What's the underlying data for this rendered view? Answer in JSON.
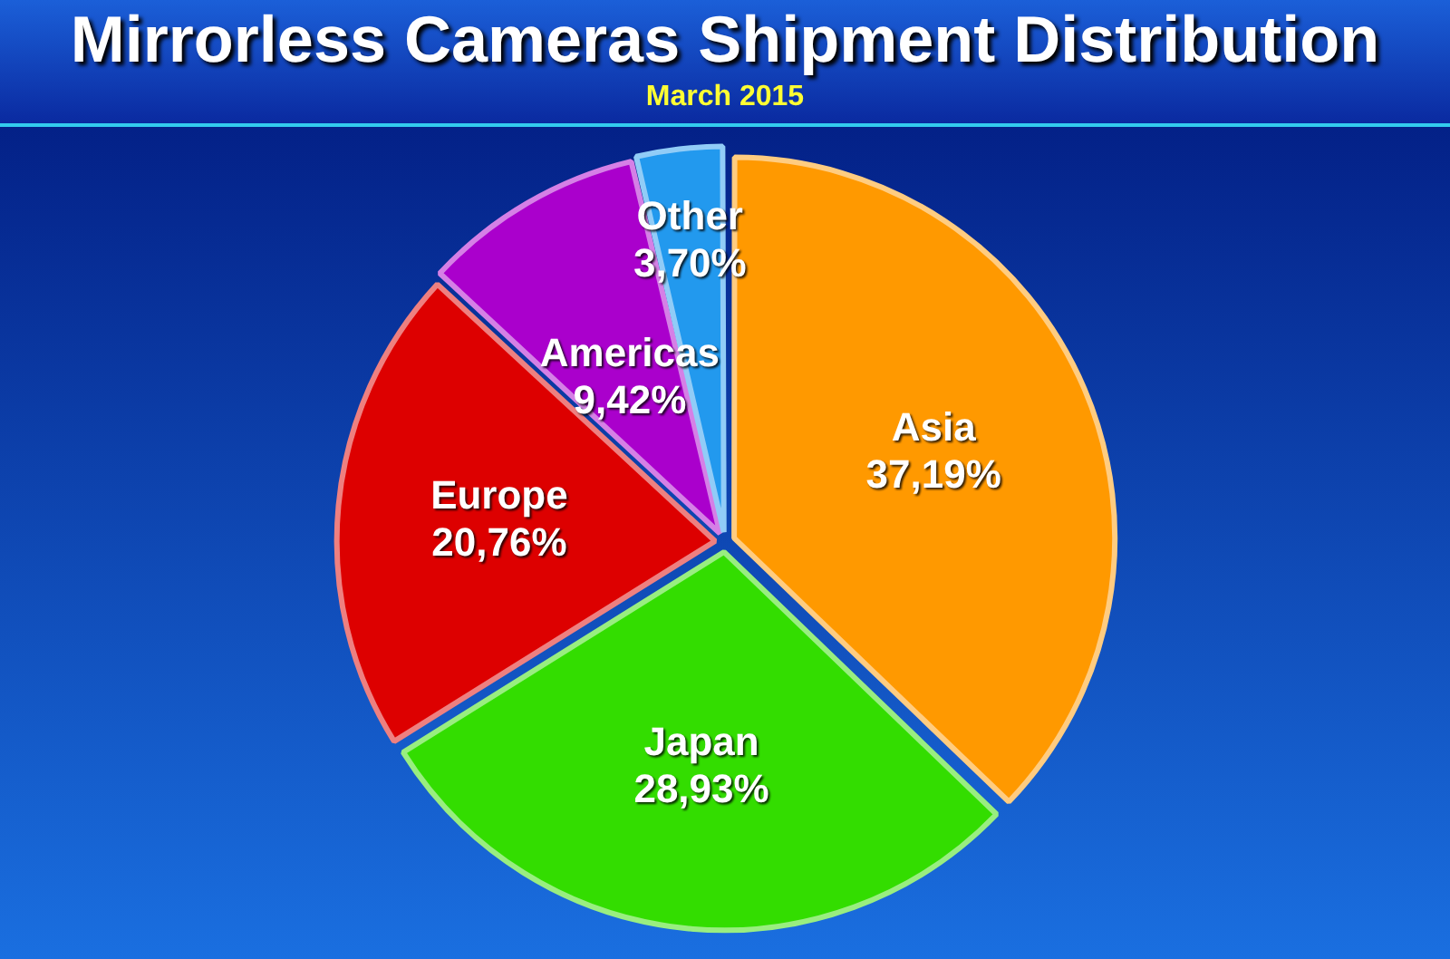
{
  "chart_data": {
    "type": "pie",
    "title": "Mirrorless Cameras Shipment Distribution",
    "subtitle": "March 2015",
    "categories": [
      "Asia",
      "Japan",
      "Europe",
      "Americas",
      "Other"
    ],
    "values": [
      37.19,
      28.93,
      20.76,
      9.42,
      3.7
    ],
    "value_labels": [
      "37,19%",
      "28,93%",
      "20,76%",
      "9,42%",
      "3,70%"
    ],
    "colors": [
      "#ff9900",
      "#33dd00",
      "#dd0000",
      "#aa00cc",
      "#2299ee"
    ],
    "legend": false
  }
}
